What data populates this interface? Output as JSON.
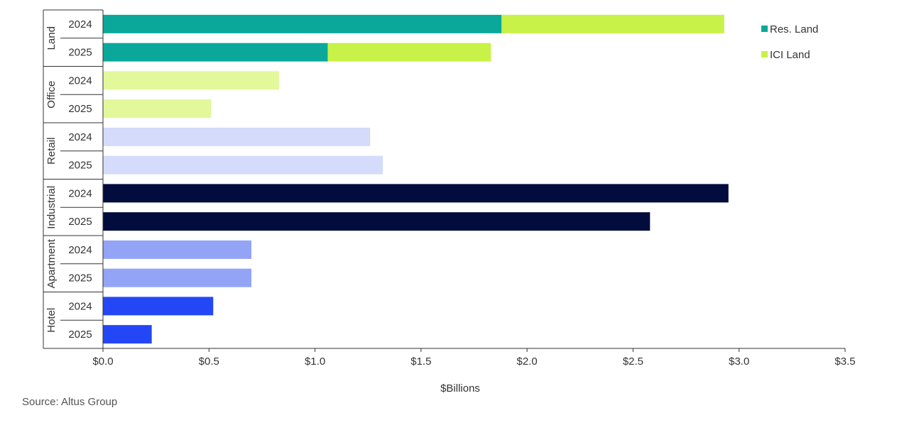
{
  "chart_data": {
    "type": "bar",
    "orientation": "horizontal",
    "stacked": true,
    "title": "",
    "xlabel": "$Billions",
    "ylabel": "",
    "xlim": [
      0,
      3.5
    ],
    "x_ticks": [
      0,
      0.5,
      1.0,
      1.5,
      2.0,
      2.5,
      3.0,
      3.5
    ],
    "x_tick_labels": [
      "$0.0",
      "$0.5",
      "$1.0",
      "$1.5",
      "$2.0",
      "$2.5",
      "$3.0",
      "$3.5"
    ],
    "groups": [
      {
        "label": "Land",
        "years": [
          "2024",
          "2025"
        ]
      },
      {
        "label": "Office",
        "years": [
          "2024",
          "2025"
        ]
      },
      {
        "label": "Retail",
        "years": [
          "2024",
          "2025"
        ]
      },
      {
        "label": "Industrial",
        "years": [
          "2024",
          "2025"
        ]
      },
      {
        "label": "Apartment",
        "years": [
          "2024",
          "2025"
        ]
      },
      {
        "label": "Hotel",
        "years": [
          "2024",
          "2025"
        ]
      }
    ],
    "bars": [
      {
        "group": "Land",
        "year": "2024",
        "segments": [
          {
            "series": "Res. Land",
            "value": 1.88,
            "color": "#0aa89a"
          },
          {
            "series": "ICI Land",
            "value": 1.05,
            "color": "#c8f248"
          }
        ]
      },
      {
        "group": "Land",
        "year": "2025",
        "segments": [
          {
            "series": "Res. Land",
            "value": 1.06,
            "color": "#0aa89a"
          },
          {
            "series": "ICI Land",
            "value": 0.77,
            "color": "#c8f248"
          }
        ]
      },
      {
        "group": "Office",
        "year": "2024",
        "segments": [
          {
            "series": "Office",
            "value": 0.83,
            "color": "#e2f89a"
          }
        ]
      },
      {
        "group": "Office",
        "year": "2025",
        "segments": [
          {
            "series": "Office",
            "value": 0.51,
            "color": "#e2f89a"
          }
        ]
      },
      {
        "group": "Retail",
        "year": "2024",
        "segments": [
          {
            "series": "Retail",
            "value": 1.26,
            "color": "#d4dbfb"
          }
        ]
      },
      {
        "group": "Retail",
        "year": "2025",
        "segments": [
          {
            "series": "Retail",
            "value": 1.32,
            "color": "#d4dbfb"
          }
        ]
      },
      {
        "group": "Industrial",
        "year": "2024",
        "segments": [
          {
            "series": "Industrial",
            "value": 2.95,
            "color": "#020d3d"
          }
        ]
      },
      {
        "group": "Industrial",
        "year": "2025",
        "segments": [
          {
            "series": "Industrial",
            "value": 2.58,
            "color": "#020d3d"
          }
        ]
      },
      {
        "group": "Apartment",
        "year": "2024",
        "segments": [
          {
            "series": "Apartment",
            "value": 0.7,
            "color": "#93a4f7"
          }
        ]
      },
      {
        "group": "Apartment",
        "year": "2025",
        "segments": [
          {
            "series": "Apartment",
            "value": 0.7,
            "color": "#93a4f7"
          }
        ]
      },
      {
        "group": "Hotel",
        "year": "2024",
        "segments": [
          {
            "series": "Hotel",
            "value": 0.52,
            "color": "#2447f5"
          }
        ]
      },
      {
        "group": "Hotel",
        "year": "2025",
        "segments": [
          {
            "series": "Hotel",
            "value": 0.23,
            "color": "#2447f5"
          }
        ]
      }
    ],
    "legend": {
      "placement": "top-right",
      "entries": [
        {
          "label": "Res. Land",
          "color": "#0aa89a"
        },
        {
          "label": "ICI Land",
          "color": "#c8f248"
        }
      ]
    }
  },
  "source_note": "Source:  Altus Group"
}
